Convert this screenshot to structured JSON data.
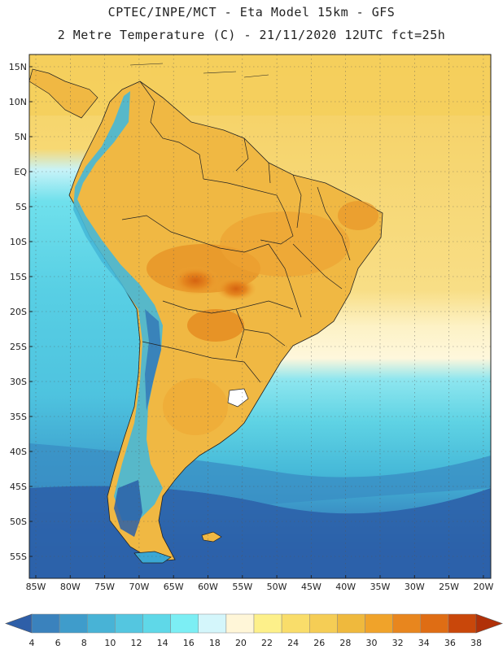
{
  "header": {
    "line1": "CPTEC/INPE/MCT -  Eta Model 15km - GFS",
    "line2": "2 Metre Temperature (C) - 21/11/2020 12UTC fct=25h"
  },
  "map": {
    "lat_labels": [
      "15N",
      "10N",
      "5N",
      "EQ",
      "5S",
      "10S",
      "15S",
      "20S",
      "25S",
      "30S",
      "35S",
      "40S",
      "45S",
      "50S",
      "55S"
    ],
    "lon_labels": [
      "85W",
      "80W",
      "75W",
      "70W",
      "65W",
      "60W",
      "55W",
      "50W",
      "45W",
      "40W",
      "35W",
      "30W",
      "25W",
      "20W"
    ],
    "colors": {
      "ocean_warm": "#f5d36a",
      "ocean_cool_north": "#fbe3a0",
      "ocean_cold": "#5fd3e4",
      "ocean_colder": "#41b4d4",
      "ocean_coldest": "#2a5fa8",
      "land_warm": "#f0b945",
      "land_hot": "#e58a24",
      "land_hottest": "#d76a14",
      "andes_cold": "#46b8d8",
      "border": "#222222"
    }
  },
  "colorbar": {
    "labels": [
      "4",
      "6",
      "8",
      "10",
      "12",
      "14",
      "16",
      "18",
      "20",
      "22",
      "24",
      "26",
      "28",
      "30",
      "32",
      "34",
      "36",
      "38"
    ],
    "colors": [
      "#2e5fa8",
      "#3a82bd",
      "#3f9ccb",
      "#48b3d6",
      "#54c6e0",
      "#5fd8e8",
      "#7ceef4",
      "#d4f6fb",
      "#fff6d8",
      "#fdf08a",
      "#f9dd6a",
      "#f5cd55",
      "#efb93d",
      "#f0a32a",
      "#e8861e",
      "#df6d14",
      "#c9470a",
      "#b03008"
    ]
  }
}
